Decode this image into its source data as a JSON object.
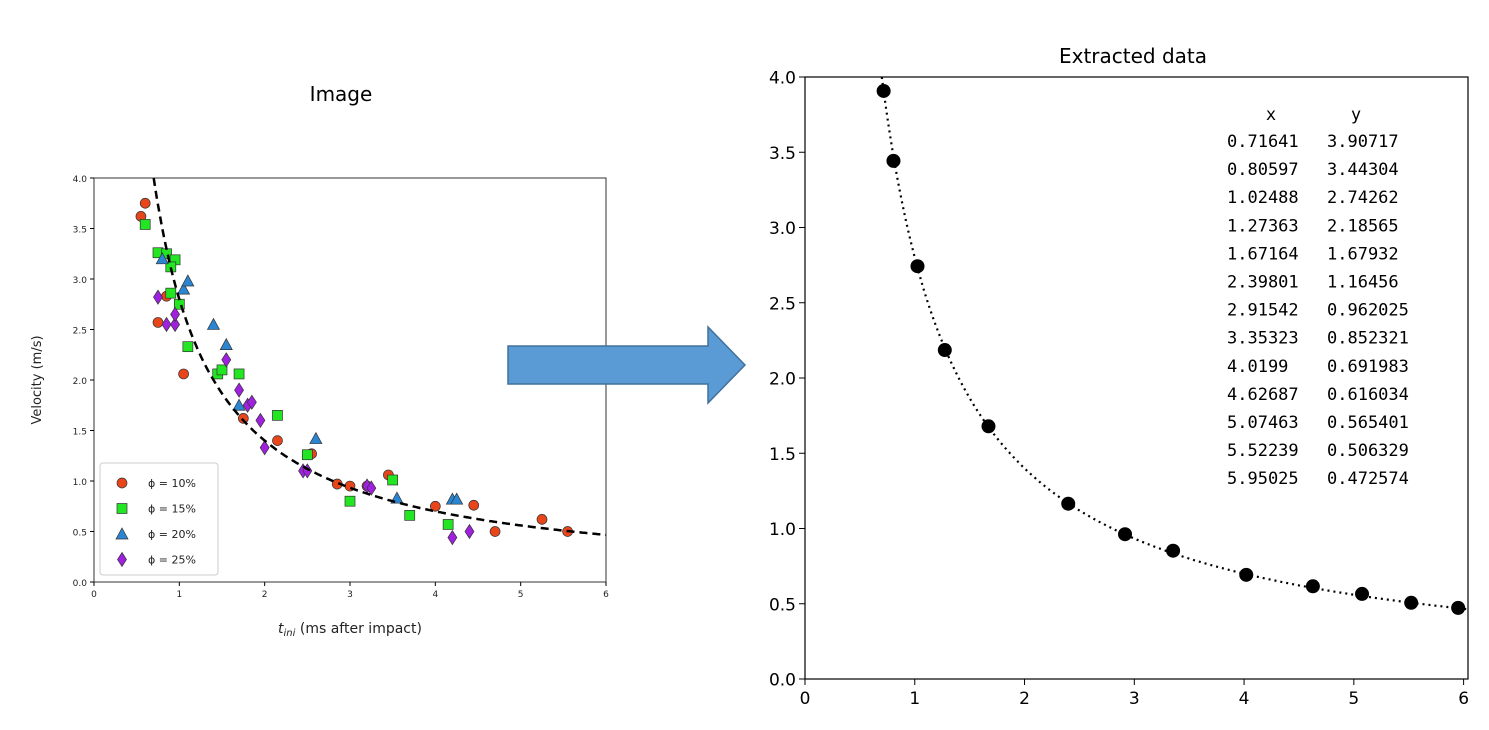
{
  "chart_data": [
    {
      "type": "scatter",
      "title": "Image",
      "xlabel": "t_ini (ms after impact)",
      "xlabel_main": "t",
      "xlabel_sub": "ini",
      "xlabel_rest": " (ms after impact)",
      "ylabel": "Velocity (m/s)",
      "xlim": [
        0,
        6
      ],
      "ylim": [
        0,
        4.0
      ],
      "xticks": [
        "0",
        "1",
        "2",
        "3",
        "4",
        "5",
        "6"
      ],
      "yticks": [
        "0.0",
        "0.5",
        "1.0",
        "1.5",
        "2.0",
        "2.5",
        "3.0",
        "3.5",
        "4.0"
      ],
      "legend_position": "lower-left",
      "fit_curve": {
        "style": "dashed",
        "formula": "y = 2.8 / x",
        "a": 2.8,
        "color": "#000000"
      },
      "series": [
        {
          "name": "ϕ = 10%",
          "marker": "circle",
          "color": "#e8461a",
          "points": [
            [
              0.55,
              3.62
            ],
            [
              0.6,
              3.75
            ],
            [
              0.75,
              2.57
            ],
            [
              0.85,
              2.83
            ],
            [
              1.05,
              2.06
            ],
            [
              1.75,
              1.62
            ],
            [
              2.15,
              1.4
            ],
            [
              2.55,
              1.27
            ],
            [
              2.85,
              0.97
            ],
            [
              3.0,
              0.95
            ],
            [
              3.2,
              0.95
            ],
            [
              3.45,
              1.06
            ],
            [
              4.0,
              0.75
            ],
            [
              4.45,
              0.76
            ],
            [
              4.7,
              0.5
            ],
            [
              5.25,
              0.62
            ],
            [
              5.55,
              0.5
            ]
          ]
        },
        {
          "name": "ϕ = 15%",
          "marker": "square",
          "color": "#22e622",
          "points": [
            [
              0.6,
              3.54
            ],
            [
              0.75,
              3.26
            ],
            [
              0.85,
              3.25
            ],
            [
              0.95,
              3.19
            ],
            [
              0.9,
              3.12
            ],
            [
              0.9,
              2.86
            ],
            [
              1.0,
              2.75
            ],
            [
              1.1,
              2.33
            ],
            [
              1.45,
              2.06
            ],
            [
              1.5,
              2.1
            ],
            [
              1.7,
              2.06
            ],
            [
              2.15,
              1.65
            ],
            [
              2.5,
              1.26
            ],
            [
              3.0,
              0.8
            ],
            [
              3.5,
              1.01
            ],
            [
              3.7,
              0.66
            ],
            [
              4.15,
              0.57
            ]
          ]
        },
        {
          "name": "ϕ = 20%",
          "marker": "triangle",
          "color": "#2a86d2",
          "points": [
            [
              0.8,
              3.2
            ],
            [
              1.05,
              2.9
            ],
            [
              1.1,
              2.98
            ],
            [
              1.4,
              2.55
            ],
            [
              1.55,
              2.35
            ],
            [
              1.7,
              1.75
            ],
            [
              2.6,
              1.42
            ],
            [
              3.55,
              0.83
            ],
            [
              4.2,
              0.82
            ],
            [
              4.25,
              0.82
            ]
          ]
        },
        {
          "name": "ϕ = 25%",
          "marker": "diamond",
          "color": "#a020e0",
          "points": [
            [
              0.75,
              2.82
            ],
            [
              0.85,
              2.55
            ],
            [
              0.95,
              2.55
            ],
            [
              0.95,
              2.65
            ],
            [
              1.55,
              2.2
            ],
            [
              1.7,
              1.9
            ],
            [
              1.8,
              1.75
            ],
            [
              1.85,
              1.78
            ],
            [
              1.95,
              1.6
            ],
            [
              2.0,
              1.33
            ],
            [
              2.45,
              1.1
            ],
            [
              2.5,
              1.1
            ],
            [
              3.2,
              0.95
            ],
            [
              3.25,
              0.93
            ],
            [
              4.2,
              0.44
            ],
            [
              4.4,
              0.5
            ]
          ]
        }
      ]
    },
    {
      "type": "scatter",
      "title": "Extracted data",
      "xlabel": "",
      "ylabel": "",
      "xlim": [
        0,
        6.04
      ],
      "ylim": [
        0,
        4.0
      ],
      "xticks": [
        "0",
        "1",
        "2",
        "3",
        "4",
        "5",
        "6"
      ],
      "yticks": [
        "0.0",
        "0.5",
        "1.0",
        "1.5",
        "2.0",
        "2.5",
        "3.0",
        "3.5",
        "4.0"
      ],
      "fit_curve": {
        "style": "dotted",
        "formula": "y = 2.8 / x",
        "a": 2.8,
        "color": "#000000"
      },
      "marker_color": "#000000",
      "table_headers": [
        "x",
        "y"
      ],
      "x": [
        0.71641,
        0.80597,
        1.02488,
        1.27363,
        1.67164,
        2.39801,
        2.91542,
        3.35323,
        4.0199,
        4.62687,
        5.07463,
        5.52239,
        5.95025
      ],
      "y": [
        3.90717,
        3.44304,
        2.74262,
        2.18565,
        1.67932,
        1.16456,
        0.962025,
        0.852321,
        0.691983,
        0.616034,
        0.565401,
        0.506329,
        0.472574
      ],
      "table_rows": [
        [
          "0.71641",
          "3.90717"
        ],
        [
          "0.80597",
          "3.44304"
        ],
        [
          "1.02488",
          "2.74262"
        ],
        [
          "1.27363",
          "2.18565"
        ],
        [
          "1.67164",
          "1.67932"
        ],
        [
          "2.39801",
          "1.16456"
        ],
        [
          "2.91542",
          "0.962025"
        ],
        [
          "3.35323",
          "0.852321"
        ],
        [
          "4.0199",
          "0.691983"
        ],
        [
          "4.62687",
          "0.616034"
        ],
        [
          "5.07463",
          "0.565401"
        ],
        [
          "5.52239",
          "0.506329"
        ],
        [
          "5.95025",
          "0.472574"
        ]
      ]
    }
  ],
  "arrow": {
    "color": "#5b9bd5",
    "border": "#41719c"
  }
}
